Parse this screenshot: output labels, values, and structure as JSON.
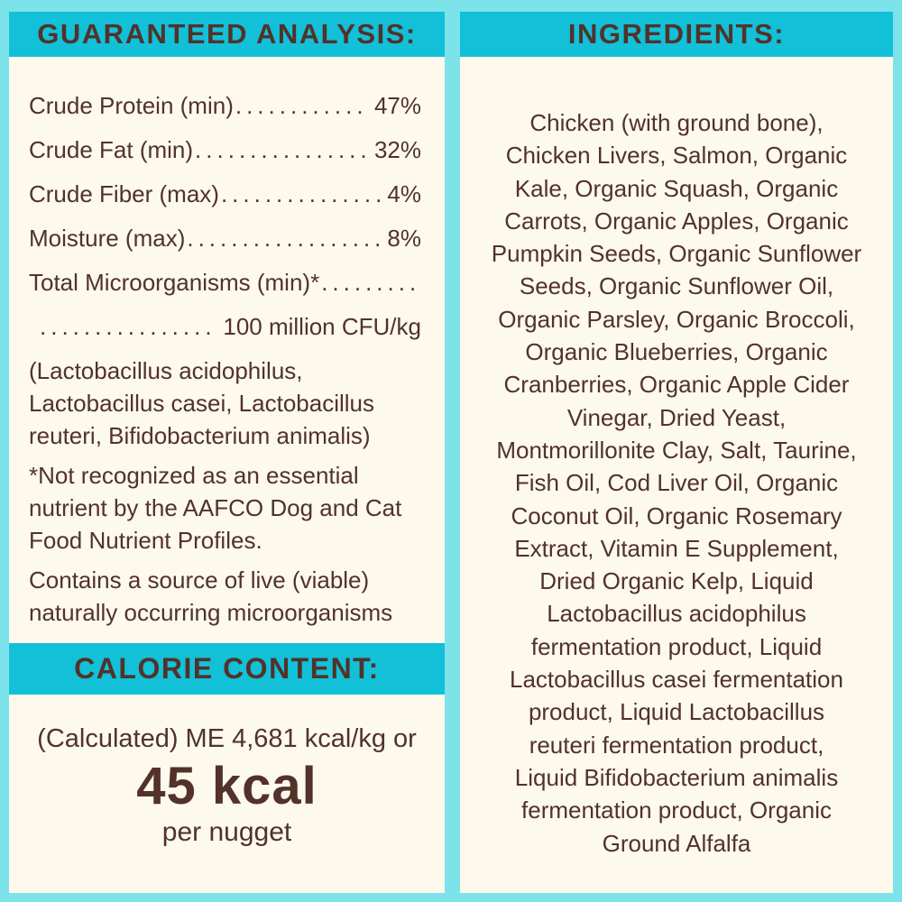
{
  "colors": {
    "outer_background": "#7de3ea",
    "header_band": "#12c0d8",
    "panel_background": "#fdf9ec",
    "text_brown": "#523229"
  },
  "left_panel": {
    "header": "GUARANTEED ANALYSIS:",
    "leader_dots": "................................................",
    "rows": [
      {
        "label": "Crude Protein (min)",
        "value": "47%"
      },
      {
        "label": "Crude Fat (min)",
        "value": "32%"
      },
      {
        "label": "Crude Fiber (max)",
        "value": "4%"
      },
      {
        "label": "Moisture (max)",
        "value": "8%"
      }
    ],
    "micro_label": "Total Microorganisms (min)*",
    "micro_value": "100 million CFU/kg",
    "paren_note_lines": [
      "(Lactobacillus acidophilus,",
      "Lactobacillus casei, Lactobacillus",
      "reuteri, Bifidobacterium animalis)"
    ],
    "footnote_lines": [
      "*Not recognized as an essential",
      "nutrient by the AAFCO Dog and Cat",
      "Food Nutrient Profiles."
    ],
    "contains_lines": [
      "Contains a source of live (viable)",
      "naturally occurring microorganisms"
    ],
    "calorie": {
      "header": "CALORIE CONTENT:",
      "line1": "(Calculated) ME 4,681 kcal/kg or",
      "big": "45 kcal",
      "sub": "per nugget"
    }
  },
  "right_panel": {
    "header": "INGREDIENTS:",
    "ingredients_lines": [
      "Chicken (with ground bone),",
      "Chicken Livers, Salmon, Organic",
      "Kale, Organic Squash, Organic",
      "Carrots, Organic Apples, Organic",
      "Pumpkin Seeds, Organic Sunflower",
      "Seeds, Organic Sunflower Oil,",
      "Organic Parsley, Organic Broccoli,",
      "Organic Blueberries, Organic",
      "Cranberries, Organic Apple Cider",
      "Vinegar, Dried Yeast,",
      "Montmorillonite Clay, Salt, Taurine,",
      "Fish Oil, Cod Liver Oil, Organic",
      "Coconut Oil, Organic Rosemary",
      "Extract, Vitamin E Supplement,",
      "Dried Organic Kelp, Liquid",
      "Lactobacillus acidophilus",
      "fermentation product, Liquid",
      "Lactobacillus casei fermentation",
      "product, Liquid Lactobacillus",
      "reuteri fermentation product,",
      "Liquid Bifidobacterium animalis",
      "fermentation product, Organic",
      "Ground Alfalfa"
    ]
  }
}
